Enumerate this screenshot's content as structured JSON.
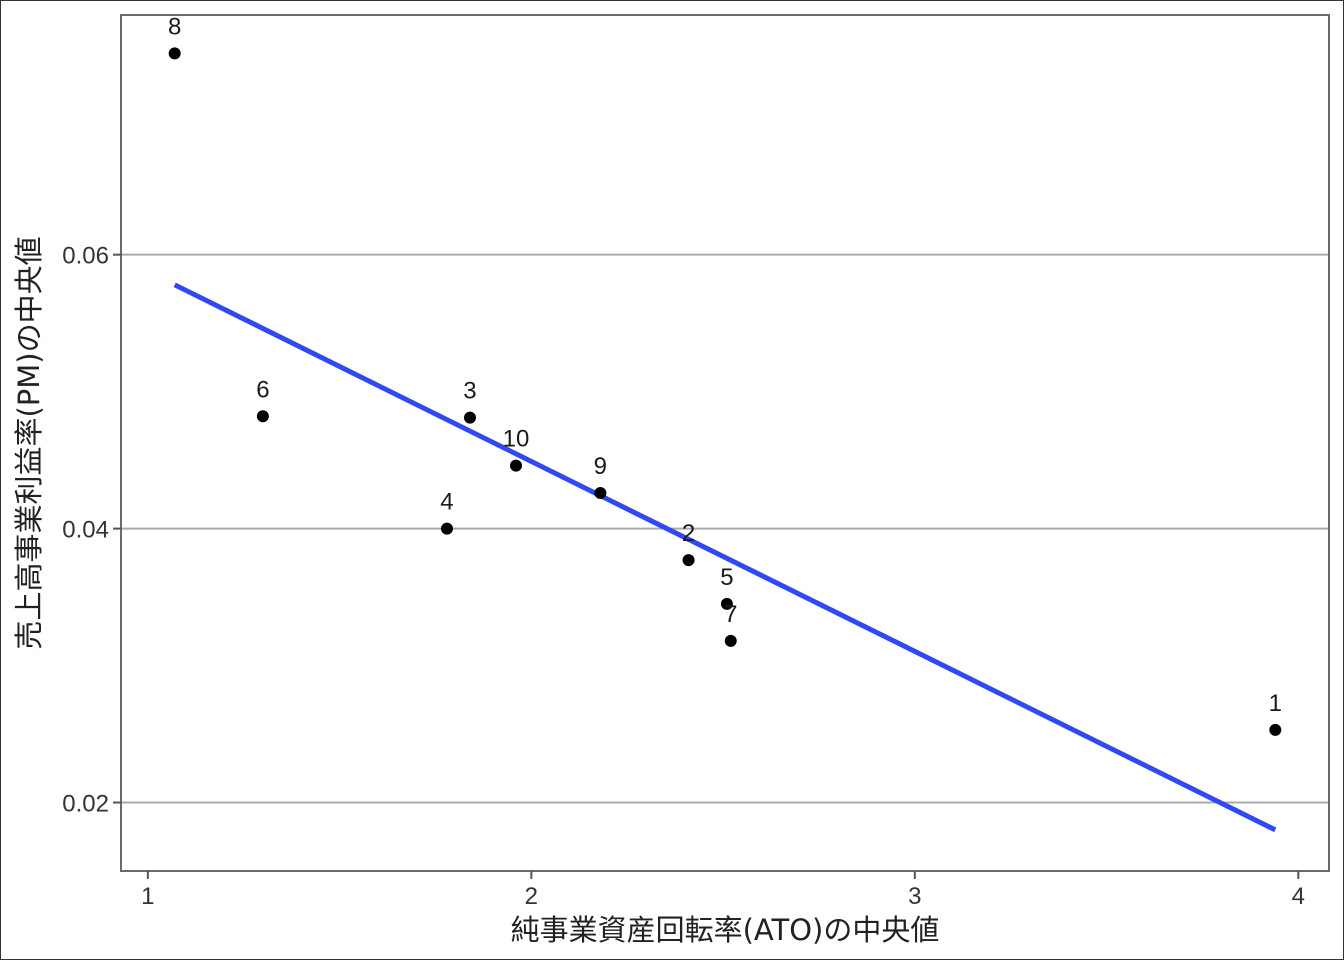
{
  "chart_data": {
    "type": "scatter",
    "xlabel": "純事業資産回転率(ATO)の中央値",
    "ylabel": "売上高事業利益率(PM)の中央値",
    "xlim": [
      0.93,
      4.08
    ],
    "ylim": [
      0.015,
      0.0775
    ],
    "x_ticks": [
      1,
      2,
      3,
      4
    ],
    "x_tick_labels": [
      "1",
      "2",
      "3",
      "4"
    ],
    "y_ticks": [
      0.02,
      0.04,
      0.06
    ],
    "y_tick_labels": [
      "0.02",
      "0.04",
      "0.06"
    ],
    "grid": "horizontal major lines",
    "points": [
      {
        "label": "1",
        "x": 3.94,
        "y": 0.0253
      },
      {
        "label": "2",
        "x": 2.41,
        "y": 0.0377
      },
      {
        "label": "3",
        "x": 1.84,
        "y": 0.0481
      },
      {
        "label": "4",
        "x": 1.78,
        "y": 0.04
      },
      {
        "label": "5",
        "x": 2.51,
        "y": 0.0345
      },
      {
        "label": "6",
        "x": 1.3,
        "y": 0.0482
      },
      {
        "label": "7",
        "x": 2.52,
        "y": 0.0318
      },
      {
        "label": "8",
        "x": 1.07,
        "y": 0.0747
      },
      {
        "label": "9",
        "x": 2.18,
        "y": 0.0426
      },
      {
        "label": "10",
        "x": 1.96,
        "y": 0.0446
      }
    ],
    "fit_line": {
      "x": [
        1.07,
        3.94
      ],
      "y": [
        0.0578,
        0.018
      ]
    },
    "colors": {
      "points": "#000000",
      "fit_line": "#3049f0",
      "grid": "#aaaaaa",
      "panel_border": "#6b6b6b"
    }
  }
}
